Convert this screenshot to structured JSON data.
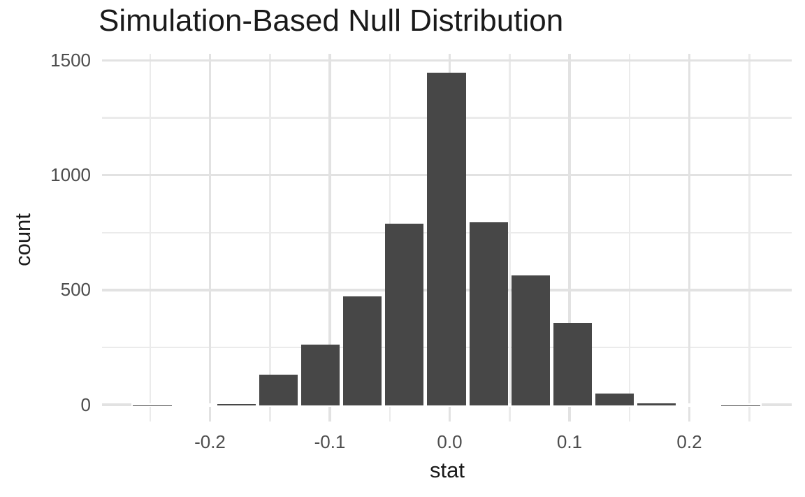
{
  "chart": {
    "title": "Simulation-Based Null Distribution",
    "xlabel": "stat",
    "ylabel": "count"
  },
  "chart_data": {
    "type": "bar",
    "subtype": "histogram",
    "title": "Simulation-Based Null Distribution",
    "xlabel": "stat",
    "ylabel": "count",
    "grid": true,
    "legend": false,
    "binwidth": 0.0351,
    "bin_centers": [
      -0.2481,
      -0.213,
      -0.178,
      -0.1429,
      -0.1078,
      -0.0728,
      -0.0377,
      -0.0026,
      0.0325,
      0.0675,
      0.1026,
      0.1377,
      0.1727,
      0.2078,
      0.2429
    ],
    "counts": [
      1,
      0,
      5,
      135,
      266,
      474,
      791,
      1450,
      797,
      567,
      359,
      52,
      10,
      0,
      1
    ],
    "x_ticks": [
      {
        "value": -0.2,
        "label": "-0.2"
      },
      {
        "value": -0.1,
        "label": "-0.1"
      },
      {
        "value": 0.0,
        "label": "0.0"
      },
      {
        "value": 0.1,
        "label": "0.1"
      },
      {
        "value": 0.2,
        "label": "0.2"
      }
    ],
    "x_minor_ticks": [
      -0.25,
      -0.15,
      -0.05,
      0.05,
      0.15,
      0.25
    ],
    "y_ticks": [
      {
        "value": 0,
        "label": "0"
      },
      {
        "value": 500,
        "label": "500"
      },
      {
        "value": 1000,
        "label": "1000"
      },
      {
        "value": 1500,
        "label": "1500"
      }
    ],
    "y_minor_ticks": [
      250,
      750,
      1250
    ],
    "xlim": [
      -0.29,
      0.285
    ],
    "ylim": [
      0,
      1500
    ],
    "colors": {
      "bar_fill": "#474747",
      "background": "#ffffff",
      "grid_major": "#e2e2e2",
      "grid_minor": "#ebebeb",
      "tick_label_text": "#4d4d4d",
      "title_text": "#1a1a1a",
      "axis_title_text": "#1a1a1a"
    }
  }
}
